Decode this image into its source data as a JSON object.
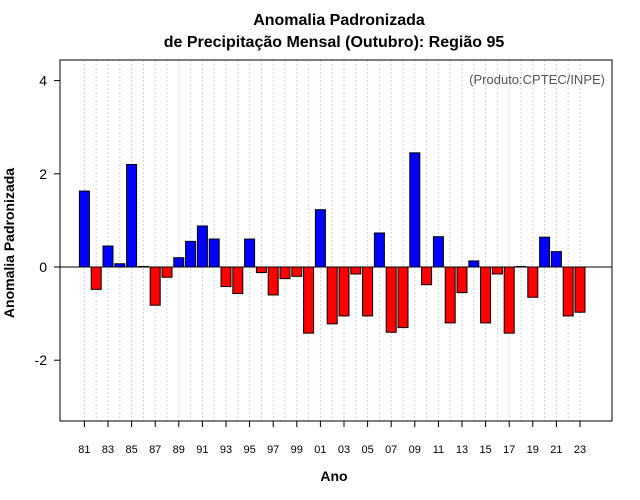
{
  "chart_data": {
    "type": "bar",
    "title": "Anomalia Padronizada",
    "subtitle": "de Precipitação Mensal (Outubro): Região 95",
    "xlabel": "Ano",
    "ylabel": "Anomalia Padronizada",
    "annotation": "(Produto:CPTEC/INPE)",
    "ylim": [
      -3.4,
      4.5
    ],
    "yticks": [
      -2,
      0,
      2,
      4
    ],
    "grid": "vertical dotted",
    "years": [
      "81",
      "82",
      "83",
      "84",
      "85",
      "86",
      "87",
      "88",
      "89",
      "90",
      "91",
      "92",
      "93",
      "94",
      "95",
      "96",
      "97",
      "98",
      "99",
      "00",
      "01",
      "02",
      "03",
      "04",
      "05",
      "06",
      "07",
      "08",
      "09",
      "10",
      "11",
      "12",
      "13",
      "14",
      "15",
      "16",
      "17",
      "18",
      "19",
      "20",
      "21",
      "22",
      "23"
    ],
    "tick_labels": [
      "81",
      "83",
      "85",
      "87",
      "89",
      "91",
      "93",
      "95",
      "97",
      "99",
      "01",
      "03",
      "05",
      "07",
      "09",
      "11",
      "13",
      "15",
      "17",
      "19",
      "21",
      "23"
    ],
    "values": [
      1.63,
      -0.48,
      0.45,
      0.07,
      2.2,
      0.01,
      -0.82,
      -0.22,
      0.2,
      0.55,
      0.88,
      0.6,
      -0.42,
      -0.57,
      0.6,
      -0.12,
      -0.6,
      -0.25,
      -0.2,
      -1.42,
      1.23,
      -1.22,
      -1.05,
      -0.15,
      -1.05,
      0.73,
      -1.4,
      -1.3,
      2.45,
      -0.38,
      0.65,
      -1.2,
      -0.55,
      0.13,
      -1.2,
      -0.15,
      -1.42,
      0.01,
      -0.65,
      0.64,
      0.33,
      -1.05,
      -0.97
    ],
    "colors": {
      "positive": "#0000ff",
      "negative": "#ff0000",
      "border": "#000000",
      "grid": "#d3d3d3"
    }
  }
}
